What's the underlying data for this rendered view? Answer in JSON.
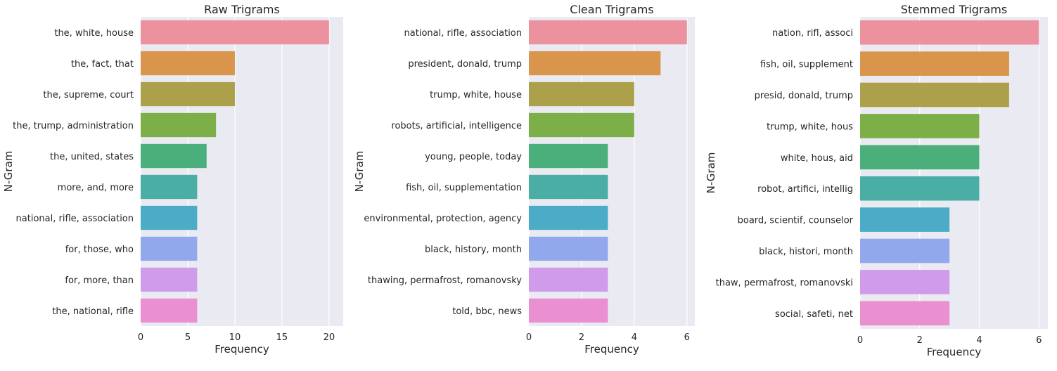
{
  "chart_data": [
    {
      "type": "bar",
      "orientation": "horizontal",
      "title": "Raw Trigrams",
      "xlabel": "Frequency",
      "ylabel": "N-Gram",
      "xlim": [
        0,
        21.5
      ],
      "xticks": [
        0,
        5,
        10,
        15,
        20
      ],
      "grid": true,
      "categories": [
        "the, white, house",
        "the, fact, that",
        "the, supreme, court",
        "the, trump, administration",
        "the, united, states",
        "more, and, more",
        "national, rifle, association",
        "for, those, who",
        "for, more, than",
        "the, national, rifle"
      ],
      "values": [
        20,
        10,
        10,
        8,
        7,
        6,
        6,
        6,
        6,
        6
      ]
    },
    {
      "type": "bar",
      "orientation": "horizontal",
      "title": "Clean Trigrams",
      "xlabel": "Frequency",
      "ylabel": "N-Gram",
      "xlim": [
        0,
        6.3
      ],
      "xticks": [
        0,
        2,
        4,
        6
      ],
      "grid": true,
      "categories": [
        "national, rifle, association",
        "president, donald, trump",
        "trump, white, house",
        "robots, artificial, intelligence",
        "young, people, today",
        "fish, oil, supplementation",
        "environmental, protection, agency",
        "black, history, month",
        "thawing, permafrost, romanovsky",
        "told, bbc, news"
      ],
      "values": [
        6,
        5,
        4,
        4,
        3,
        3,
        3,
        3,
        3,
        3
      ]
    },
    {
      "type": "bar",
      "orientation": "horizontal",
      "title": "Stemmed Trigrams",
      "xlabel": "Frequency",
      "ylabel": "N-Gram",
      "xlim": [
        0,
        6.3
      ],
      "xticks": [
        0,
        2,
        4,
        6
      ],
      "grid": true,
      "categories": [
        "nation, rifl, associ",
        "fish, oil, supplement",
        "presid, donald, trump",
        "trump, white, hous",
        "white, hous, aid",
        "robot, artifici, intellig",
        "board, scientif, counselor",
        "black, histori, month",
        "thaw, permafrost, romanovski",
        "social, safeti, net"
      ],
      "values": [
        6,
        5,
        5,
        4,
        4,
        4,
        3,
        3,
        3,
        3
      ]
    }
  ],
  "palette": [
    "#ec929f",
    "#d8954b",
    "#aca04b",
    "#7daf48",
    "#4aaf7a",
    "#4aaea4",
    "#4cacc7",
    "#92a8ec",
    "#d09beb",
    "#ea8fcf"
  ],
  "colors": {
    "plot_background": "#eaeaf2",
    "grid": "#ffffff",
    "text": "#262626"
  }
}
